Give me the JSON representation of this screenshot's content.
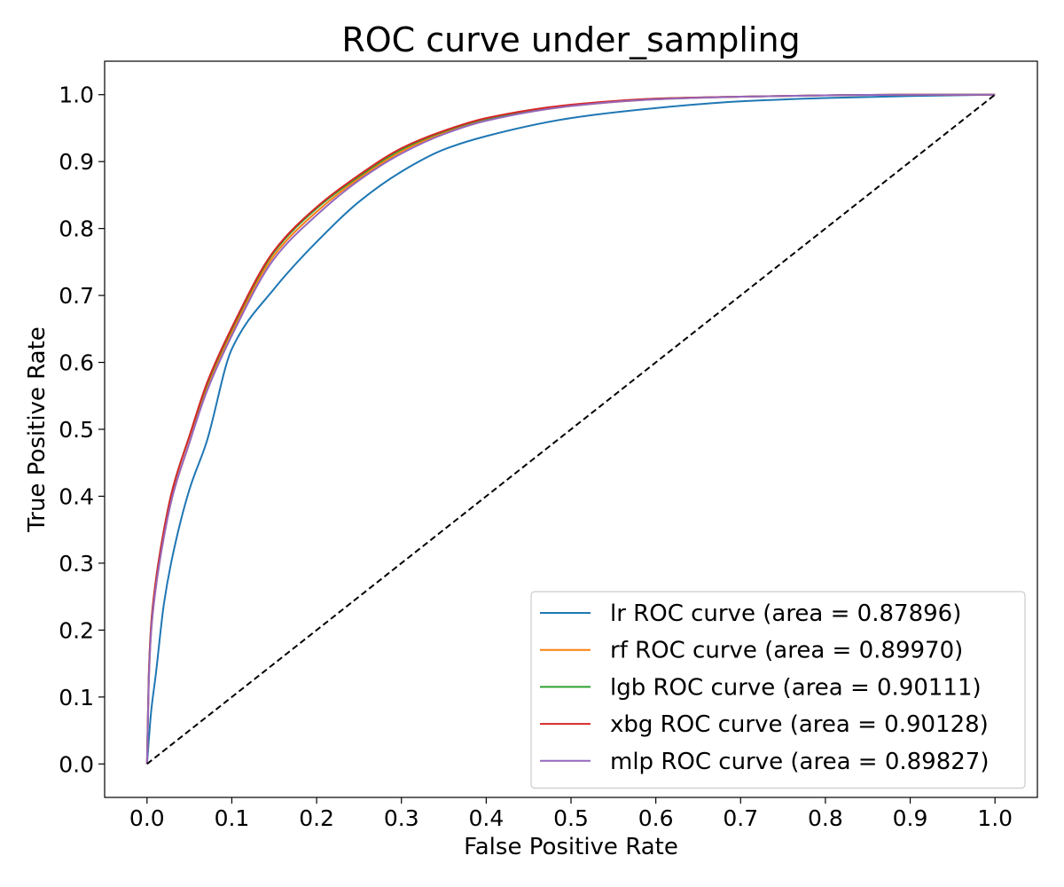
{
  "chart_data": {
    "type": "line",
    "title": "ROC curve under_sampling",
    "xlabel": "False Positive Rate",
    "ylabel": "True Positive Rate",
    "xlim": [
      -0.05,
      1.05
    ],
    "ylim": [
      -0.05,
      1.05
    ],
    "xticks": [
      "0.0",
      "0.1",
      "0.2",
      "0.3",
      "0.4",
      "0.5",
      "0.6",
      "0.7",
      "0.8",
      "0.9",
      "1.0"
    ],
    "yticks": [
      "0.0",
      "0.1",
      "0.2",
      "0.3",
      "0.4",
      "0.5",
      "0.6",
      "0.7",
      "0.8",
      "0.9",
      "1.0"
    ],
    "grid": false,
    "legend_position": "lower-right",
    "series": [
      {
        "name": "lr ROC curve (area = 0.87896)",
        "color": "#1f77b4",
        "x": [
          0,
          0.005,
          0.01,
          0.02,
          0.03,
          0.05,
          0.07,
          0.1,
          0.15,
          0.2,
          0.25,
          0.3,
          0.35,
          0.4,
          0.5,
          0.6,
          0.7,
          0.8,
          0.9,
          1.0
        ],
        "y": [
          0,
          0.08,
          0.13,
          0.24,
          0.31,
          0.41,
          0.48,
          0.62,
          0.71,
          0.78,
          0.84,
          0.885,
          0.918,
          0.938,
          0.965,
          0.98,
          0.99,
          0.995,
          0.998,
          1.0
        ]
      },
      {
        "name": "rf ROC curve (area = 0.89970)",
        "color": "#ff7f0e",
        "x": [
          0,
          0.002,
          0.005,
          0.01,
          0.02,
          0.03,
          0.05,
          0.07,
          0.1,
          0.15,
          0.2,
          0.25,
          0.3,
          0.35,
          0.4,
          0.5,
          0.6,
          0.7,
          0.8,
          0.9,
          1.0
        ],
        "y": [
          0,
          0.12,
          0.2,
          0.26,
          0.34,
          0.4,
          0.48,
          0.56,
          0.645,
          0.76,
          0.825,
          0.875,
          0.915,
          0.943,
          0.962,
          0.983,
          0.993,
          0.997,
          0.999,
          1.0,
          1.0
        ]
      },
      {
        "name": "lgb ROC curve (area = 0.90111)",
        "color": "#2ca02c",
        "x": [
          0,
          0.002,
          0.005,
          0.01,
          0.02,
          0.03,
          0.05,
          0.07,
          0.1,
          0.15,
          0.2,
          0.25,
          0.3,
          0.35,
          0.4,
          0.5,
          0.6,
          0.7,
          0.8,
          0.9,
          1.0
        ],
        "y": [
          0,
          0.13,
          0.21,
          0.27,
          0.35,
          0.41,
          0.49,
          0.565,
          0.65,
          0.765,
          0.83,
          0.878,
          0.918,
          0.945,
          0.964,
          0.984,
          0.994,
          0.997,
          0.999,
          1.0,
          1.0
        ]
      },
      {
        "name": "xbg ROC curve (area = 0.90128)",
        "color": "#d62728",
        "x": [
          0,
          0.002,
          0.005,
          0.01,
          0.02,
          0.03,
          0.05,
          0.07,
          0.1,
          0.15,
          0.2,
          0.25,
          0.3,
          0.35,
          0.4,
          0.5,
          0.6,
          0.7,
          0.8,
          0.9,
          1.0
        ],
        "y": [
          0,
          0.13,
          0.21,
          0.27,
          0.35,
          0.41,
          0.49,
          0.567,
          0.652,
          0.767,
          0.832,
          0.88,
          0.92,
          0.946,
          0.965,
          0.985,
          0.994,
          0.997,
          0.999,
          1.0,
          1.0
        ]
      },
      {
        "name": "mlp ROC curve (area = 0.89827)",
        "color": "#9467bd",
        "x": [
          0,
          0.002,
          0.005,
          0.01,
          0.02,
          0.03,
          0.05,
          0.07,
          0.1,
          0.15,
          0.2,
          0.25,
          0.3,
          0.35,
          0.4,
          0.5,
          0.6,
          0.7,
          0.8,
          0.9,
          1.0
        ],
        "y": [
          0,
          0.12,
          0.2,
          0.26,
          0.34,
          0.4,
          0.48,
          0.555,
          0.64,
          0.755,
          0.82,
          0.872,
          0.912,
          0.941,
          0.961,
          0.983,
          0.993,
          0.997,
          0.999,
          1.0,
          1.0
        ]
      },
      {
        "name": "",
        "color": "#000000",
        "dashed": true,
        "x": [
          0,
          1
        ],
        "y": [
          0,
          1
        ]
      }
    ]
  }
}
